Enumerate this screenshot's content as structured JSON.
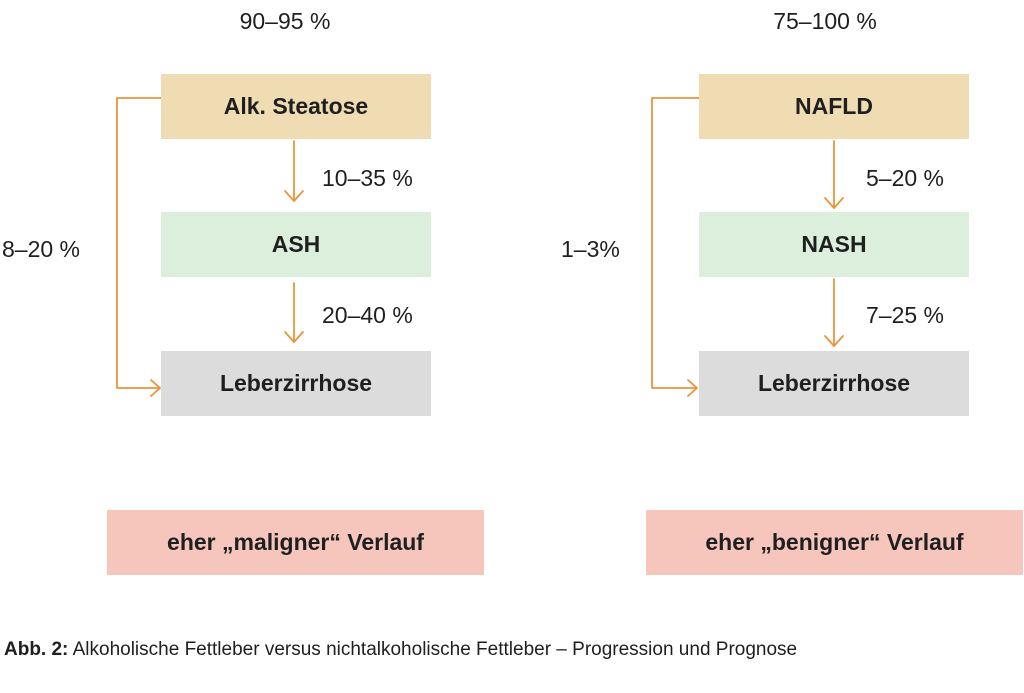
{
  "left": {
    "top_percent": "90–95 %",
    "box1": "Alk. Steatose",
    "arrow1_percent": "10–35 %",
    "box2": "ASH",
    "arrow2_percent": "20–40 %",
    "box3": "Leberzirrhose",
    "bypass_percent": "8–20 %",
    "outcome": "eher „maligner“ Verlauf"
  },
  "right": {
    "top_percent": "75–100 %",
    "box1": "NAFLD",
    "arrow1_percent": "5–20 %",
    "box2": "NASH",
    "arrow2_percent": "7–25 %",
    "box3": "Leberzirrhose",
    "bypass_percent": "1–3%",
    "outcome": "eher „benigner“ Verlauf"
  },
  "caption": {
    "label": "Abb. 2:",
    "text": " Alkoholische Fettleber versus nichtalkoholische Fettleber – Progression und Prognose"
  },
  "colors": {
    "steatose": "#efdcb2",
    "hepatitis": "#dcefdc",
    "cirrhosis": "#dcdcdc",
    "outcome": "#f6c6bd",
    "arrow": "#e8953a"
  }
}
